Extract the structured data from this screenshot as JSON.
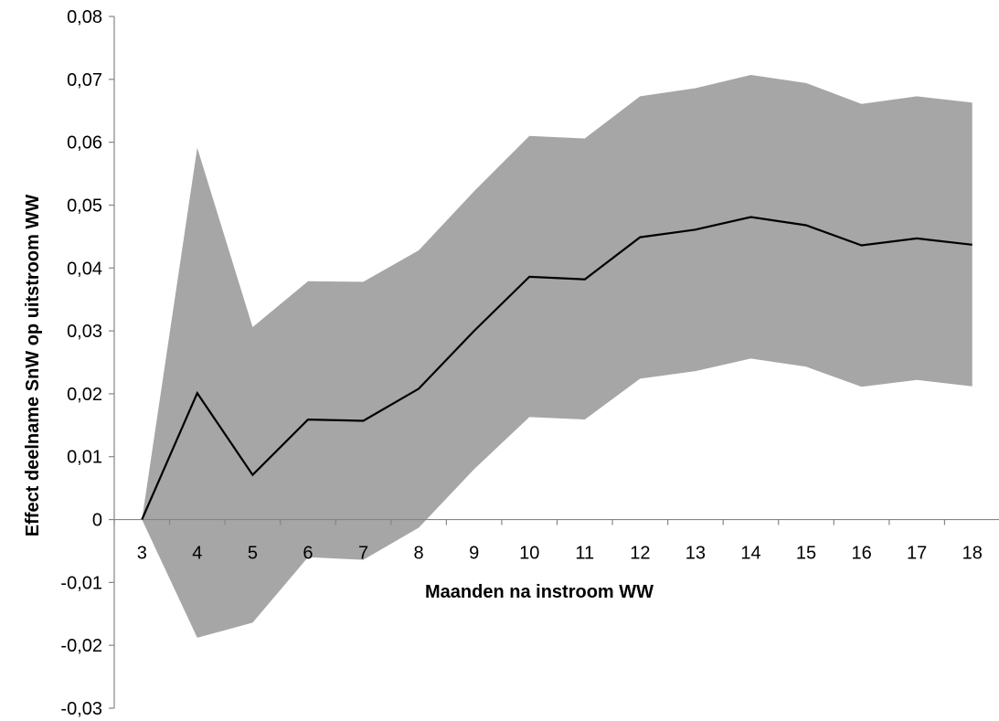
{
  "chart_data": {
    "type": "area",
    "title": "",
    "xlabel": "Maanden na instroom WW",
    "ylabel": "Effect deelname SnW op uitstroom WW",
    "categories": [
      "3",
      "4",
      "5",
      "6",
      "7",
      "8",
      "9",
      "10",
      "11",
      "12",
      "13",
      "14",
      "15",
      "16",
      "17",
      "18"
    ],
    "ylim": [
      -0.03,
      0.08
    ],
    "yticks": [
      -0.03,
      -0.02,
      -0.01,
      0,
      0.01,
      0.02,
      0.03,
      0.04,
      0.05,
      0.06,
      0.07,
      0.08
    ],
    "ytick_labels": [
      "-0,03",
      "-0,02",
      "-0,01",
      "0",
      "0,01",
      "0,02",
      "0,03",
      "0,04",
      "0,05",
      "0,06",
      "0,07",
      "0,08"
    ],
    "grid": false,
    "legend": "none",
    "series": [
      {
        "role": "estimate",
        "values": [
          0,
          0.0201,
          0.0071,
          0.0159,
          0.0157,
          0.0208,
          0.03,
          0.0386,
          0.0382,
          0.0449,
          0.0461,
          0.0481,
          0.0468,
          0.0436,
          0.0447,
          0.0437
        ]
      },
      {
        "role": "upper_bound",
        "values": [
          0,
          0.0591,
          0.0306,
          0.0379,
          0.0378,
          0.0428,
          0.0522,
          0.061,
          0.0606,
          0.0673,
          0.0686,
          0.0707,
          0.0694,
          0.0661,
          0.0673,
          0.0663
        ]
      },
      {
        "role": "lower_bound",
        "values": [
          0,
          -0.0188,
          -0.0164,
          -0.006,
          -0.0064,
          -0.0013,
          0.008,
          0.0163,
          0.0159,
          0.0224,
          0.0236,
          0.0256,
          0.0243,
          0.0211,
          0.0222,
          0.0212
        ]
      }
    ],
    "colors": {
      "band": "#a6a6a6",
      "line": "#000000",
      "axis": "#868686"
    }
  }
}
